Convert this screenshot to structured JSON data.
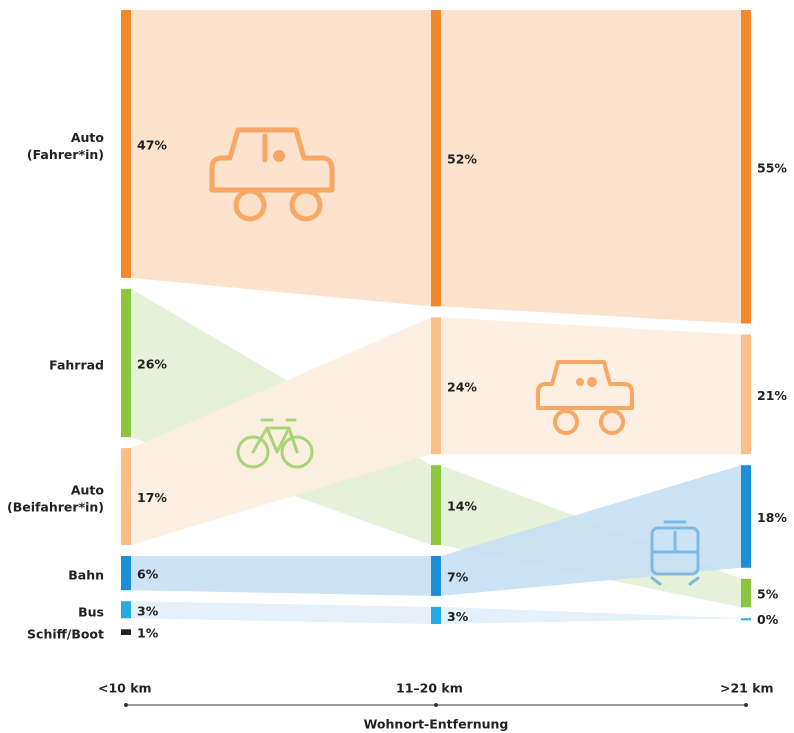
{
  "chart_data": {
    "type": "alluvial",
    "columns": [
      "<10 km",
      "11–20 km",
      ">21 km"
    ],
    "xlabel": "Wohnort-Entfernung",
    "series": [
      {
        "name": [
          "Auto",
          "(Fahrer*in)"
        ],
        "color": "#f5882a",
        "flow_color": "#fde0c8",
        "values": [
          47,
          52,
          55
        ],
        "value_labels": [
          "47%",
          "52%",
          "55%"
        ]
      },
      {
        "name": [
          "Fahrrad"
        ],
        "color": "#8cc63f",
        "flow_color": "#e3efd5",
        "values": [
          26,
          14,
          5
        ],
        "value_labels": [
          "26%",
          "14%",
          "5%"
        ]
      },
      {
        "name": [
          "Auto",
          "(Beifahrer*in)"
        ],
        "color": "#fbbf8a",
        "flow_color": "#fdeedf",
        "values": [
          17,
          24,
          21
        ],
        "value_labels": [
          "17%",
          "24%",
          "21%"
        ]
      },
      {
        "name": [
          "Bahn"
        ],
        "color": "#1a8fd6",
        "flow_color": "#c6dff4",
        "values": [
          6,
          7,
          18
        ],
        "value_labels": [
          "6%",
          "7%",
          "18%"
        ]
      },
      {
        "name": [
          "Bus"
        ],
        "color": "#27a9e1",
        "flow_color": "#e1eff9",
        "values": [
          3,
          3,
          0
        ],
        "value_labels": [
          "3%",
          "3%",
          "0%"
        ]
      },
      {
        "name": [
          "Schiff/Boot"
        ],
        "color": "#222222",
        "flow_color": "#dddddd",
        "values": [
          1,
          null,
          null
        ],
        "value_labels": [
          "1%",
          null,
          null
        ]
      }
    ]
  }
}
